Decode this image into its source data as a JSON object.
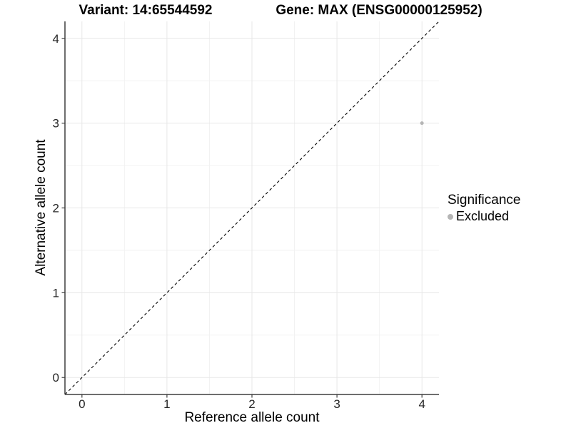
{
  "chart_data": {
    "type": "scatter",
    "titles": {
      "left": "Variant: 14:65544592",
      "right": "Gene: MAX (ENSG00000125952)"
    },
    "xlabel": "Reference allele count",
    "ylabel": "Alternative allele count",
    "xlim": [
      -0.2,
      4.2
    ],
    "ylim": [
      -0.2,
      4.2
    ],
    "xticks": [
      0,
      1,
      2,
      3,
      4
    ],
    "yticks": [
      0,
      1,
      2,
      3,
      4
    ],
    "grid": "major-and-minor",
    "identity_line": {
      "style": "dashed",
      "from": [
        -0.2,
        -0.2
      ],
      "to": [
        4.2,
        4.2
      ]
    },
    "points": [
      {
        "x": 4,
        "y": 3,
        "series": "Excluded"
      }
    ],
    "legend": {
      "title": "Significance",
      "position": "right",
      "items": [
        {
          "label": "Excluded",
          "color": "#b5b5b5"
        }
      ]
    },
    "colors": {
      "point": "#b5b5b5",
      "grid_major": "#e7e7e7",
      "grid_minor": "#f2f2f2",
      "axis_line": "#3f3f3f",
      "tick_label": "#262626",
      "dash_line": "#000000"
    }
  }
}
